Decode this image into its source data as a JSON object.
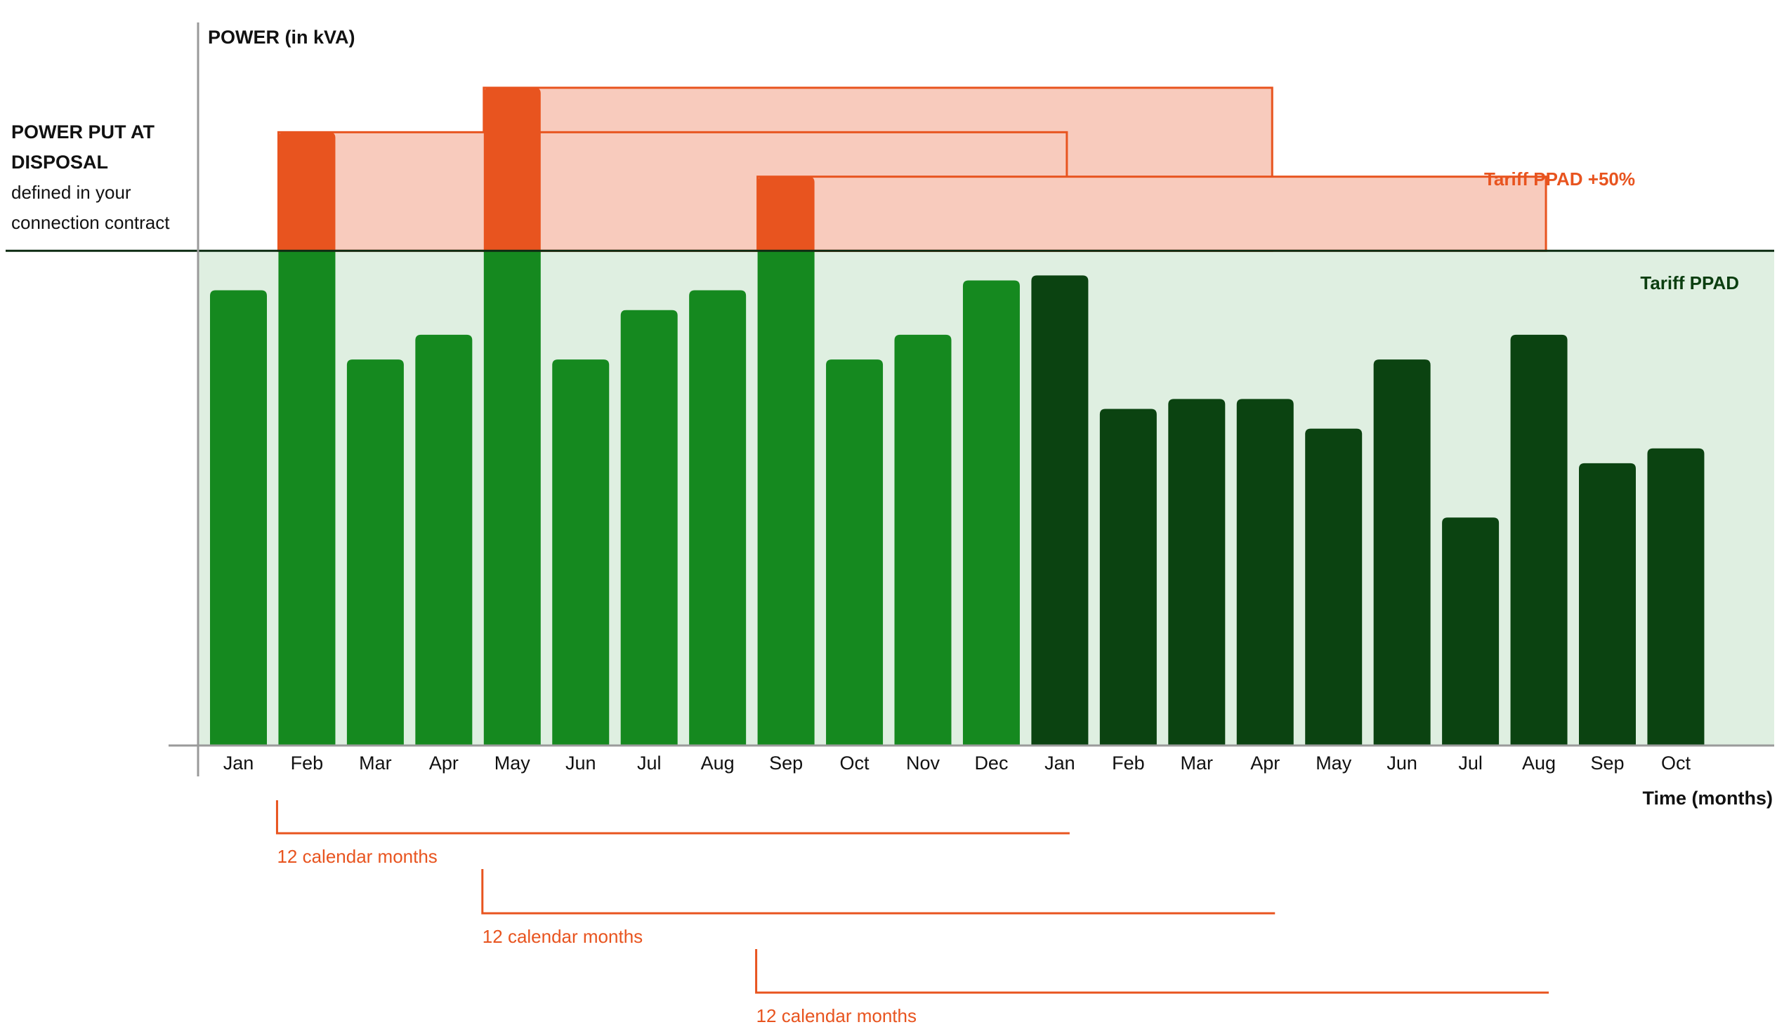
{
  "chart_data": {
    "type": "bar",
    "ylabel": "POWER (in kVA)",
    "xlabel": "Time (months)",
    "categories": [
      "Jan",
      "Feb",
      "Mar",
      "Apr",
      "May",
      "Jun",
      "Jul",
      "Aug",
      "Sep",
      "Oct",
      "Nov",
      "Dec",
      "Jan",
      "Feb",
      "Mar",
      "Apr",
      "May",
      "Jun",
      "Jul",
      "Aug",
      "Sep",
      "Oct"
    ],
    "values": [
      92,
      124,
      78,
      83,
      133,
      78,
      88,
      92,
      115,
      78,
      83,
      94,
      95,
      68,
      70,
      70,
      64,
      78,
      46,
      83,
      57,
      60
    ],
    "ylim": [
      0,
      135
    ],
    "threshold": {
      "value": 100,
      "label_lines": [
        "POWER PUT AT",
        "DISPOSAL",
        "defined in your",
        "connection contract"
      ]
    },
    "period_split_index": 12,
    "regions": {
      "normal_label": "Tariff PPAD",
      "excess_label": "Tariff PPAD +50%"
    },
    "windows": [
      {
        "start_index": 1,
        "label": "12 calendar months"
      },
      {
        "start_index": 4,
        "label": "12 calendar months"
      },
      {
        "start_index": 8,
        "label": "12 calendar months"
      }
    ],
    "colors": {
      "bar_first_year": "#15891f",
      "bar_second_year": "#0b4311",
      "excess": "#e8541f",
      "excess_fill": "#f8cbbd",
      "normal_fill": "#dfefe1",
      "axis": "#9a9a9a",
      "threshold_line": "#0d2b12"
    }
  }
}
